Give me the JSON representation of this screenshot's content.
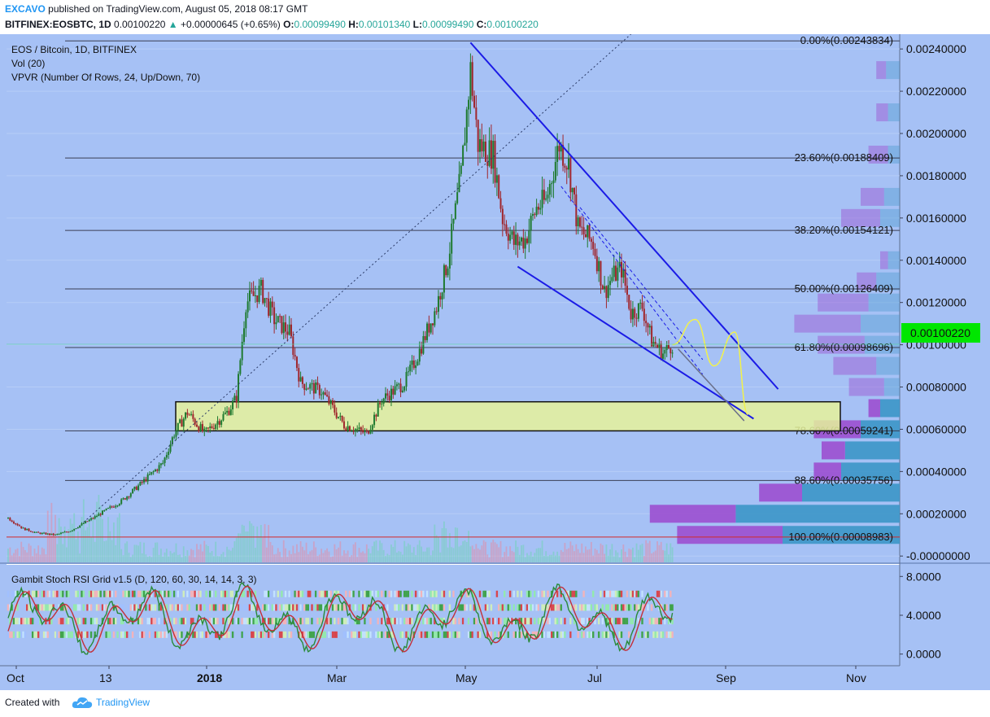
{
  "header": {
    "user": "EXCAVO",
    "published": "published on TradingView.com, August 05, 2018 08:17 GMT",
    "symbol": "BITFINEX:EOSBTC, 1D",
    "last": "0.00100220",
    "change": "+0.00000645 (+0.65%)",
    "o_label": "O:",
    "o": "0.00099490",
    "h_label": "H:",
    "h": "0.00101340",
    "l_label": "L:",
    "l": "0.00099490",
    "c_label": "C:",
    "c": "0.00100220"
  },
  "legend": {
    "title": "EOS / Bitcoin, 1D, BITFINEX",
    "vol": "Vol (20)",
    "vpvr": "VPVR (Number Of Rows, 24, Up/Down, 70)",
    "rsi": "Gambit Stoch RSI Grid v1.5 (D, 120, 60, 30, 14, 14, 3, 3)"
  },
  "price_badge": "0.00100220",
  "footer": {
    "created": "Created with",
    "brand": "TradingView"
  },
  "colors": {
    "background": "#a6c1f5",
    "up": "#1e7a2f",
    "down": "#a0262c",
    "trend": "#1b1be6",
    "zone_fill": "#e6f29a",
    "badge": "#00e600",
    "vpvr_up": "#3c96c8",
    "vpvr_down": "#9c4fd0"
  },
  "chart_data": [
    {
      "type": "candlestick",
      "title": "EOS / Bitcoin, 1D, BITFINEX",
      "x_ticks": [
        "Oct",
        "13",
        "2018",
        "Mar",
        "May",
        "Jul",
        "Sep",
        "Nov"
      ],
      "y_ticks": [
        "0.00240000",
        "0.00220000",
        "0.00200000",
        "0.00180000",
        "0.00160000",
        "0.00140000",
        "0.00120000",
        "0.00100000",
        "0.00080000",
        "0.00060000",
        "0.00040000",
        "0.00020000",
        "-0.00000000"
      ],
      "ylim": [
        -3e-05,
        0.00247
      ],
      "current_price": 0.0010022,
      "waypoints": [
        [
          0,
          0.00018
        ],
        [
          8,
          0.00013
        ],
        [
          15,
          0.00011
        ],
        [
          25,
          0.0001
        ],
        [
          33,
          0.00012
        ],
        [
          45,
          0.00018
        ],
        [
          60,
          0.00026
        ],
        [
          70,
          0.00034
        ],
        [
          82,
          0.00044
        ],
        [
          88,
          0.00058
        ],
        [
          95,
          0.00068
        ],
        [
          104,
          0.00058
        ],
        [
          116,
          0.00068
        ],
        [
          121,
          0.00075
        ],
        [
          126,
          0.0012
        ],
        [
          134,
          0.00126
        ],
        [
          141,
          0.00112
        ],
        [
          149,
          0.00106
        ],
        [
          155,
          0.00082
        ],
        [
          166,
          0.00078
        ],
        [
          178,
          0.00062
        ],
        [
          190,
          0.00058
        ],
        [
          198,
          0.00074
        ],
        [
          210,
          0.00082
        ],
        [
          217,
          0.00095
        ],
        [
          227,
          0.00118
        ],
        [
          233,
          0.0014
        ],
        [
          240,
          0.0018
        ],
        [
          245,
          0.0023
        ],
        [
          249,
          0.00195
        ],
        [
          257,
          0.0019
        ],
        [
          262,
          0.0016
        ],
        [
          268,
          0.00148
        ],
        [
          274,
          0.0015
        ],
        [
          280,
          0.00165
        ],
        [
          285,
          0.00168
        ],
        [
          292,
          0.00195
        ],
        [
          297,
          0.00185
        ],
        [
          302,
          0.00155
        ],
        [
          310,
          0.00148
        ],
        [
          316,
          0.00125
        ],
        [
          320,
          0.00132
        ],
        [
          325,
          0.00136
        ],
        [
          330,
          0.00115
        ],
        [
          336,
          0.00118
        ],
        [
          341,
          0.00102
        ],
        [
          347,
          0.00096
        ],
        [
          352,
          0.001
        ]
      ],
      "fib_levels": [
        {
          "label": "0.00%(0.00243834)",
          "value": 0.00243834
        },
        {
          "label": "23.60%(0.00188409)",
          "value": 0.00188409
        },
        {
          "label": "38.20%(0.00154121)",
          "value": 0.00154121
        },
        {
          "label": "50.00%(0.00126409)",
          "value": 0.00126409
        },
        {
          "label": "61.80%(0.00098696)",
          "value": 0.00098696
        },
        {
          "label": "78.60%(0.00059241)",
          "value": 0.00059241
        },
        {
          "label": "88.60%(0.00035756)",
          "value": 0.00035756
        },
        {
          "label": "100.00%(0.00008983)",
          "value": 8.983e-05
        }
      ],
      "support_zone": [
        0.00059241,
        0.00073
      ],
      "wedge_upper": [
        [
          245,
          0.00243
        ],
        [
          408,
          0.00079
        ]
      ],
      "wedge_lower": [
        [
          270,
          0.00137
        ],
        [
          395,
          0.00065
        ]
      ],
      "projection": [
        [
          352,
          0.001
        ],
        [
          364,
          0.00112
        ],
        [
          374,
          0.0009
        ],
        [
          385,
          0.00106
        ],
        [
          392,
          0.00067
        ]
      ],
      "vpvr_levels": [
        {
          "value": 0.0023,
          "up": 0.07,
          "down": 0.05
        },
        {
          "value": 0.0021,
          "up": 0.06,
          "down": 0.06
        },
        {
          "value": 0.0019,
          "up": 0.06,
          "down": 0.1
        },
        {
          "value": 0.0017,
          "up": 0.08,
          "down": 0.12
        },
        {
          "value": 0.0016,
          "up": 0.1,
          "down": 0.2
        },
        {
          "value": 0.0014,
          "up": 0.06,
          "down": 0.04
        },
        {
          "value": 0.0013,
          "up": 0.12,
          "down": 0.1
        },
        {
          "value": 0.0012,
          "up": 0.16,
          "down": 0.26
        },
        {
          "value": 0.0011,
          "up": 0.2,
          "down": 0.34
        },
        {
          "value": 0.001,
          "up": 0.18,
          "down": 0.24
        },
        {
          "value": 0.0009,
          "up": 0.12,
          "down": 0.22
        },
        {
          "value": 0.0008,
          "up": 0.08,
          "down": 0.18
        },
        {
          "value": 0.0007,
          "up": 0.1,
          "down": 0.06
        },
        {
          "value": 0.0006,
          "up": 0.2,
          "down": 0.24
        },
        {
          "value": 0.0005,
          "up": 0.28,
          "down": 0.12
        },
        {
          "value": 0.0004,
          "up": 0.3,
          "down": 0.14
        },
        {
          "value": 0.0003,
          "up": 0.5,
          "down": 0.22
        },
        {
          "value": 0.0002,
          "up": 0.84,
          "down": 0.44
        },
        {
          "value": 0.0001,
          "up": 0.6,
          "down": 0.54
        }
      ]
    },
    {
      "type": "line",
      "title": "Gambit Stoch RSI Grid v1.5 (D, 120, 60, 30, 14, 14, 3, 3)",
      "y_ticks": [
        "8.0000",
        "4.0000",
        "0.0000"
      ],
      "ylim": [
        -1.2,
        9.2
      ]
    }
  ]
}
